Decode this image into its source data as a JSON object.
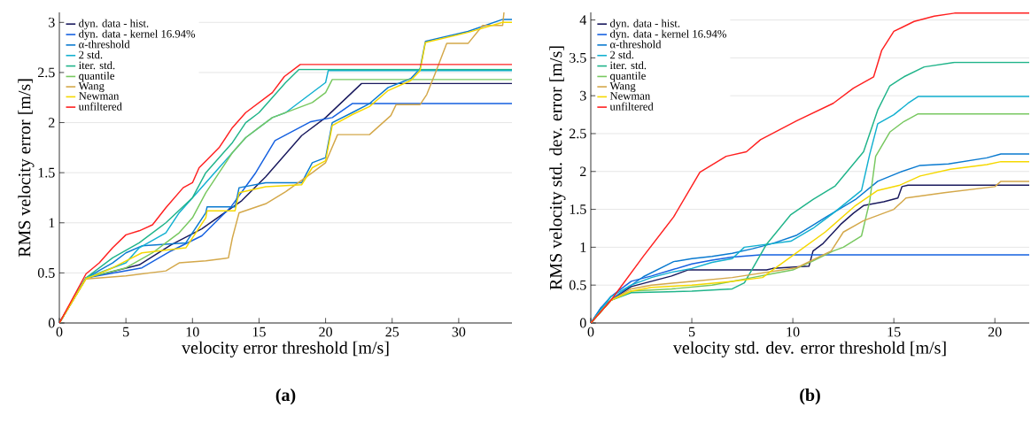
{
  "chart_data": [
    {
      "type": "line",
      "xlabel": "velocity error threshold [m/s]",
      "ylabel": "RMS velocity error [m/s]",
      "annotations": [
        "(a)"
      ],
      "xlim": [
        0,
        34
      ],
      "ylim": [
        0,
        3.1
      ],
      "xticks": [
        0,
        5,
        10,
        15,
        20,
        25,
        30
      ],
      "yticks": [
        0,
        0.5,
        1,
        1.5,
        2,
        2.5,
        3
      ],
      "grid": "y",
      "legend": "top left",
      "series": [
        {
          "name": "dyn. data - hist.",
          "color": "#1a1a5e",
          "x": [
            0,
            2,
            3,
            6,
            8.4,
            10.7,
            13.7,
            15.5,
            18.2,
            20,
            22.7,
            34
          ],
          "values": [
            0,
            0.45,
            0.48,
            0.58,
            0.78,
            0.94,
            1.22,
            1.46,
            1.87,
            2.05,
            2.39,
            2.39
          ]
        },
        {
          "name": "dyn. data - kernel 16.94%",
          "color": "#1560e0",
          "x": [
            0,
            2,
            6.2,
            8.4,
            10.7,
            12.9,
            14.7,
            16.2,
            18.9,
            20.5,
            22,
            34
          ],
          "values": [
            0,
            0.45,
            0.55,
            0.72,
            0.87,
            1.16,
            1.49,
            1.82,
            2.01,
            2.05,
            2.19,
            2.19
          ]
        },
        {
          "name": "α-threshold",
          "color": "#0a7ad0",
          "x": [
            0,
            2,
            4,
            5,
            6.2,
            9.5,
            11,
            11.1,
            13.2,
            13.5,
            15.5,
            18.2,
            19,
            20,
            20.5,
            22,
            23.3,
            24.7,
            26.4,
            27.1,
            27.5,
            30.7,
            33.3,
            34
          ],
          "values": [
            0,
            0.45,
            0.6,
            0.7,
            0.77,
            0.8,
            1.1,
            1.16,
            1.16,
            1.35,
            1.4,
            1.4,
            1.6,
            1.65,
            2,
            2.1,
            2.19,
            2.35,
            2.44,
            2.54,
            2.81,
            2.91,
            3.03,
            3.03
          ]
        },
        {
          "name": "2 std.",
          "color": "#12b0d0",
          "x": [
            0,
            2,
            5,
            6,
            8,
            9,
            10,
            11,
            12,
            13,
            14,
            15,
            16,
            17,
            18,
            19,
            20,
            20.2,
            34
          ],
          "values": [
            0,
            0.45,
            0.6,
            0.75,
            0.9,
            1.1,
            1.25,
            1.4,
            1.55,
            1.7,
            1.85,
            1.95,
            2.05,
            2.1,
            2.2,
            2.3,
            2.4,
            2.52,
            2.52
          ]
        },
        {
          "name": "iter. std.",
          "color": "#20b48a",
          "x": [
            0,
            2,
            4,
            6,
            8,
            10,
            11,
            12,
            13,
            14,
            15,
            16,
            17,
            18,
            34
          ],
          "values": [
            0,
            0.45,
            0.65,
            0.8,
            1,
            1.25,
            1.5,
            1.65,
            1.8,
            2,
            2.1,
            2.25,
            2.4,
            2.53,
            2.53
          ]
        },
        {
          "name": "quantile",
          "color": "#78c860",
          "x": [
            0,
            2,
            5,
            7,
            8,
            9,
            10,
            11,
            12,
            13,
            14,
            15,
            16,
            17,
            18,
            19,
            20,
            20.5,
            34
          ],
          "values": [
            0,
            0.45,
            0.55,
            0.7,
            0.8,
            0.9,
            1.05,
            1.3,
            1.5,
            1.7,
            1.85,
            1.95,
            2.05,
            2.1,
            2.15,
            2.2,
            2.3,
            2.43,
            2.43
          ]
        },
        {
          "name": "Wang",
          "color": "#d4a84a",
          "x": [
            0,
            2,
            5,
            8,
            9,
            11,
            12.7,
            13,
            13.5,
            15.5,
            17,
            19,
            20,
            20.9,
            23.3,
            24.9,
            25.3,
            27.1,
            27.6,
            28.2,
            29.1,
            30.7,
            31.8,
            33.3,
            33.4
          ],
          "values": [
            0,
            0.44,
            0.47,
            0.52,
            0.6,
            0.62,
            0.65,
            0.85,
            1.1,
            1.19,
            1.31,
            1.5,
            1.6,
            1.88,
            1.88,
            2.07,
            2.18,
            2.18,
            2.28,
            2.48,
            2.79,
            2.79,
            2.97,
            2.97,
            3.1
          ]
        },
        {
          "name": "Newman",
          "color": "#f5d800",
          "x": [
            0,
            2,
            4,
            5,
            6.2,
            9.5,
            11,
            11.1,
            13.2,
            13.5,
            15.5,
            18.2,
            19,
            20,
            20.5,
            22,
            23.3,
            24.7,
            26.4,
            27.1,
            27.5,
            30.7,
            33.3,
            34
          ],
          "values": [
            0,
            0.44,
            0.55,
            0.62,
            0.7,
            0.75,
            1.05,
            1.12,
            1.12,
            1.3,
            1.36,
            1.38,
            1.55,
            1.62,
            1.97,
            2.08,
            2.16,
            2.32,
            2.42,
            2.52,
            2.8,
            2.9,
            3,
            3
          ]
        },
        {
          "name": "unfiltered",
          "color": "#ff2020",
          "x": [
            0,
            2,
            3,
            4,
            5,
            6,
            7,
            8,
            9.3,
            10,
            10.5,
            11.1,
            12,
            13,
            14,
            15,
            16,
            16.9,
            18.1,
            34
          ],
          "values": [
            0,
            0.49,
            0.6,
            0.75,
            0.88,
            0.92,
            0.98,
            1.15,
            1.35,
            1.4,
            1.55,
            1.63,
            1.75,
            1.95,
            2.1,
            2.2,
            2.3,
            2.46,
            2.58,
            2.58
          ]
        }
      ]
    },
    {
      "type": "line",
      "xlabel": "velocity std. dev. error threshold [m/s]",
      "ylabel": "RMS velocity std. dev. error [m/s]",
      "annotations": [
        "(b)"
      ],
      "xlim": [
        0,
        21.7
      ],
      "ylim": [
        0,
        4.1
      ],
      "xticks": [
        0,
        5,
        10,
        15,
        20
      ],
      "yticks": [
        0,
        0.5,
        1,
        1.5,
        2,
        2.5,
        3,
        3.5,
        4
      ],
      "grid": "y",
      "legend": "top left",
      "series": [
        {
          "name": "dyn. data - hist.",
          "color": "#1a1a5e",
          "x": [
            0,
            1,
            2,
            3,
            4,
            4.8,
            8.7,
            9,
            10.8,
            11,
            11.5,
            12.4,
            13,
            13.5,
            14.5,
            15.2,
            15.4,
            15.7,
            21.7
          ],
          "values": [
            0,
            0.3,
            0.48,
            0.55,
            0.62,
            0.7,
            0.7,
            0.72,
            0.75,
            0.95,
            1.05,
            1.31,
            1.45,
            1.55,
            1.6,
            1.65,
            1.8,
            1.82,
            1.82
          ]
        },
        {
          "name": "dyn. data - kernel 16.94%",
          "color": "#1560e0",
          "x": [
            0,
            0.5,
            1,
            2,
            3,
            4,
            5,
            6,
            7,
            8.4,
            21.7
          ],
          "values": [
            0,
            0.2,
            0.35,
            0.55,
            0.62,
            0.7,
            0.78,
            0.83,
            0.87,
            0.9,
            0.9
          ]
        },
        {
          "name": "α-threshold",
          "color": "#0a7ad0",
          "x": [
            0,
            0.5,
            1.1,
            2.6,
            4.1,
            5,
            6,
            7,
            8,
            9,
            10.2,
            11.6,
            13.1,
            14.2,
            15.3,
            16.3,
            17.7,
            19.6,
            20.3,
            21.7
          ],
          "values": [
            0,
            0.2,
            0.33,
            0.61,
            0.81,
            0.85,
            0.88,
            0.92,
            0.98,
            1.05,
            1.16,
            1.39,
            1.63,
            1.87,
            1.99,
            2.08,
            2.1,
            2.18,
            2.23,
            2.23
          ]
        },
        {
          "name": "2 std.",
          "color": "#12b0d0",
          "x": [
            0,
            1,
            2,
            3,
            4,
            5,
            6,
            7,
            7.6,
            9.9,
            11,
            12,
            13.4,
            13.8,
            14.2,
            15,
            15.7,
            16.2,
            21.7
          ],
          "values": [
            0,
            0.35,
            0.5,
            0.6,
            0.67,
            0.72,
            0.8,
            0.85,
            1,
            1.08,
            1.25,
            1.45,
            1.75,
            2.22,
            2.63,
            2.75,
            2.9,
            2.99,
            2.99
          ]
        },
        {
          "name": "iter. std.",
          "color": "#20b48a",
          "x": [
            0,
            1,
            2,
            5,
            7,
            7.6,
            8.7,
            9.9,
            11,
            12.1,
            13.5,
            14.2,
            14.8,
            15.5,
            16.5,
            18,
            21.7
          ],
          "values": [
            0,
            0.3,
            0.4,
            0.42,
            0.45,
            0.53,
            1.04,
            1.43,
            1.63,
            1.81,
            2.26,
            2.81,
            3.13,
            3.25,
            3.38,
            3.44,
            3.44
          ]
        },
        {
          "name": "quantile",
          "color": "#78c860",
          "x": [
            0,
            1,
            2,
            4,
            6,
            8,
            9,
            10,
            11,
            12,
            12.5,
            13.4,
            13.8,
            14.1,
            14.8,
            15.5,
            16.2,
            21.7
          ],
          "values": [
            0,
            0.3,
            0.42,
            0.45,
            0.5,
            0.6,
            0.65,
            0.7,
            0.82,
            0.95,
            1,
            1.15,
            1.6,
            2.2,
            2.52,
            2.66,
            2.76,
            2.76
          ]
        },
        {
          "name": "Wang",
          "color": "#d4a84a",
          "x": [
            0,
            1,
            2,
            3,
            5,
            7,
            10.2,
            11.9,
            12.5,
            13.5,
            15,
            15.6,
            17.5,
            20,
            20.3,
            21.7
          ],
          "values": [
            0,
            0.3,
            0.45,
            0.5,
            0.55,
            0.6,
            0.73,
            0.95,
            1.2,
            1.35,
            1.5,
            1.65,
            1.72,
            1.8,
            1.87,
            1.87
          ]
        },
        {
          "name": "Newman",
          "color": "#f5d800",
          "x": [
            0,
            1,
            2,
            3,
            5,
            7,
            8.5,
            9,
            10.2,
            11.6,
            13.1,
            14.2,
            15.3,
            16.3,
            17.8,
            19.6,
            20.3,
            21.7
          ],
          "values": [
            0,
            0.3,
            0.42,
            0.47,
            0.5,
            0.55,
            0.6,
            0.7,
            0.93,
            1.2,
            1.55,
            1.75,
            1.82,
            1.94,
            2.03,
            2.09,
            2.13,
            2.13
          ]
        },
        {
          "name": "unfiltered",
          "color": "#ff2020",
          "x": [
            0,
            1,
            2.6,
            4.1,
            5.4,
            6.7,
            7.7,
            8.4,
            10.2,
            12,
            13,
            14,
            14.4,
            15,
            16,
            17,
            18,
            21.7
          ],
          "values": [
            0,
            0.3,
            0.88,
            1.4,
            1.99,
            2.2,
            2.26,
            2.42,
            2.67,
            2.9,
            3.1,
            3.25,
            3.6,
            3.85,
            3.98,
            4.05,
            4.09,
            4.09
          ]
        }
      ]
    }
  ]
}
